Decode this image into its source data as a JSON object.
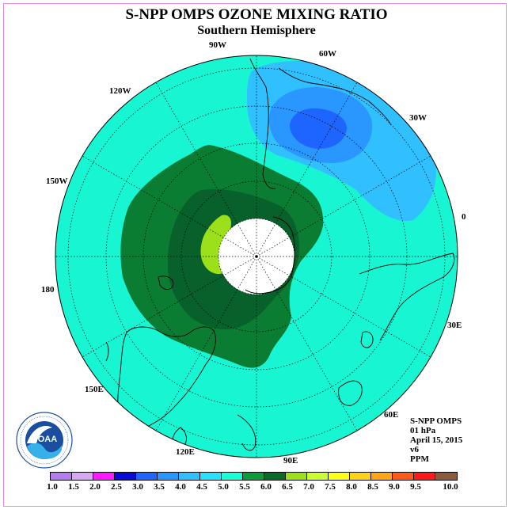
{
  "title": "S-NPP OMPS OZONE MIXING RATIO",
  "subtitle": "Southern Hemisphere",
  "longitude_labels": {
    "w90": "90W",
    "w60": "60W",
    "w30": "30W",
    "w120": "120W",
    "w150": "150W",
    "zero": "0",
    "lon180": "180",
    "e30": "30E",
    "e60": "60E",
    "e90": "90E",
    "e120": "120E",
    "e150": "150E"
  },
  "info": {
    "instrument": "S-NPP OMPS",
    "level": "01 hPa",
    "date": "April 15, 2015",
    "version": "v6",
    "units": "PPM"
  },
  "logo": {
    "text": "NOAA",
    "ring_text": "NATIONAL OCEANIC AND ATMOSPHERIC ADMINISTRATION · U.S. DEPARTMENT OF COMMERCE"
  },
  "colorbar": {
    "ticks": [
      "1.0",
      "1.5",
      "2.0",
      "2.5",
      "3.0",
      "3.5",
      "4.0",
      "4.5",
      "5.0",
      "5.5",
      "6.0",
      "6.5",
      "7.0",
      "7.5",
      "8.0",
      "8.5",
      "9.0",
      "9.5",
      "10.0"
    ],
    "colors": [
      "#b57cf0",
      "#d9a8f5",
      "#ff1aff",
      "#0a0ad8",
      "#1e64ff",
      "#2a96ff",
      "#30bfff",
      "#29e0ff",
      "#19ffd8",
      "#0c9b3a",
      "#0a6b2a",
      "#9be01a",
      "#ccff33",
      "#ffff1a",
      "#ffd21a",
      "#ffa51a",
      "#ff5a1a",
      "#ff1a1a",
      "#8b5a3c"
    ]
  },
  "colors": {
    "background_field": "#18f5d3",
    "light_blue": "#30bfff",
    "mid_blue": "#1f8bff",
    "deep_blue": "#1e64ff",
    "green_dark": "#0a7d33",
    "green_darker": "#08602a",
    "yellow_green": "#9be01a"
  }
}
